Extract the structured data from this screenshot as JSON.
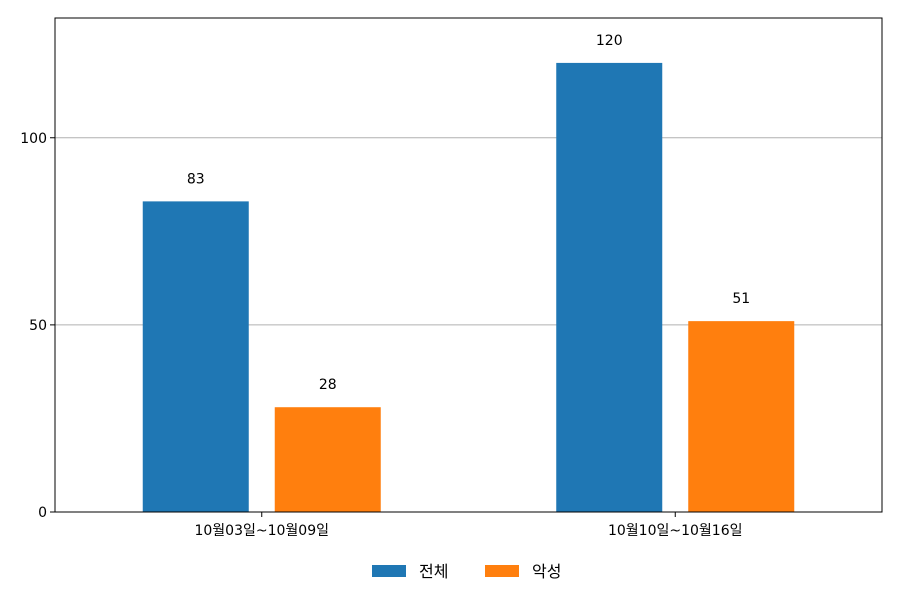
{
  "chart_data": {
    "type": "bar",
    "categories": [
      "10월03일~10월09일",
      "10월10일~10월16일"
    ],
    "series": [
      {
        "name": "전체",
        "values": [
          83,
          120
        ],
        "color": "#1f77b4"
      },
      {
        "name": "악성",
        "values": [
          28,
          51
        ],
        "color": "#ff7f0e"
      }
    ],
    "ylim": [
      0,
      132
    ],
    "yticks": [
      0,
      50,
      100
    ],
    "grid": "horizontal",
    "legend_position": "bottom-center",
    "data_labels": true
  }
}
